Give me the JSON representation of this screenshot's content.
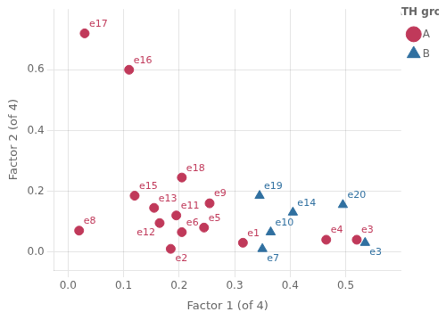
{
  "chart_data": {
    "type": "scatter",
    "xlabel": "Factor 1 (of 4)",
    "ylabel": "Factor 2 (of 4)",
    "legend_title": "MATH group",
    "series": [
      {
        "name": "A",
        "color": "#c0395a",
        "marker": "circle",
        "x": [
          0.03,
          0.11,
          0.02,
          0.12,
          0.155,
          0.165,
          0.185,
          0.195,
          0.205,
          0.245,
          0.205,
          0.255,
          0.315,
          0.465,
          0.52
        ],
        "y": [
          0.72,
          0.6,
          0.07,
          0.185,
          0.145,
          0.095,
          0.01,
          0.12,
          0.065,
          0.08,
          0.245,
          0.16,
          0.03,
          0.04,
          0.04
        ],
        "labels": [
          "e17",
          "e16",
          "e8",
          "e15",
          "e13",
          "e12",
          "e2",
          "e11",
          "e6",
          "e5",
          "e18",
          "e9",
          "e1",
          "e4",
          "e3"
        ]
      },
      {
        "name": "B",
        "color": "#3070a0",
        "marker": "triangle",
        "x": [
          0.345,
          0.405,
          0.365,
          0.35,
          0.495,
          0.535
        ],
        "y": [
          0.185,
          0.13,
          0.065,
          0.01,
          0.155,
          0.03
        ],
        "labels": [
          "e19",
          "e14",
          "e10",
          "e7",
          "e20",
          "e3"
        ]
      }
    ],
    "xlim": [
      -0.025,
      0.6
    ],
    "ylim": [
      -0.06,
      0.8
    ],
    "xticks": [
      {
        "value": 0,
        "label": "0.0"
      },
      0.1,
      0.2,
      0.3,
      0.4,
      0.5
    ],
    "yticks": [
      {
        "value": 0,
        "label": "0.0"
      },
      0.2,
      0.4,
      0.6
    ],
    "grid": true,
    "legend": "right"
  }
}
